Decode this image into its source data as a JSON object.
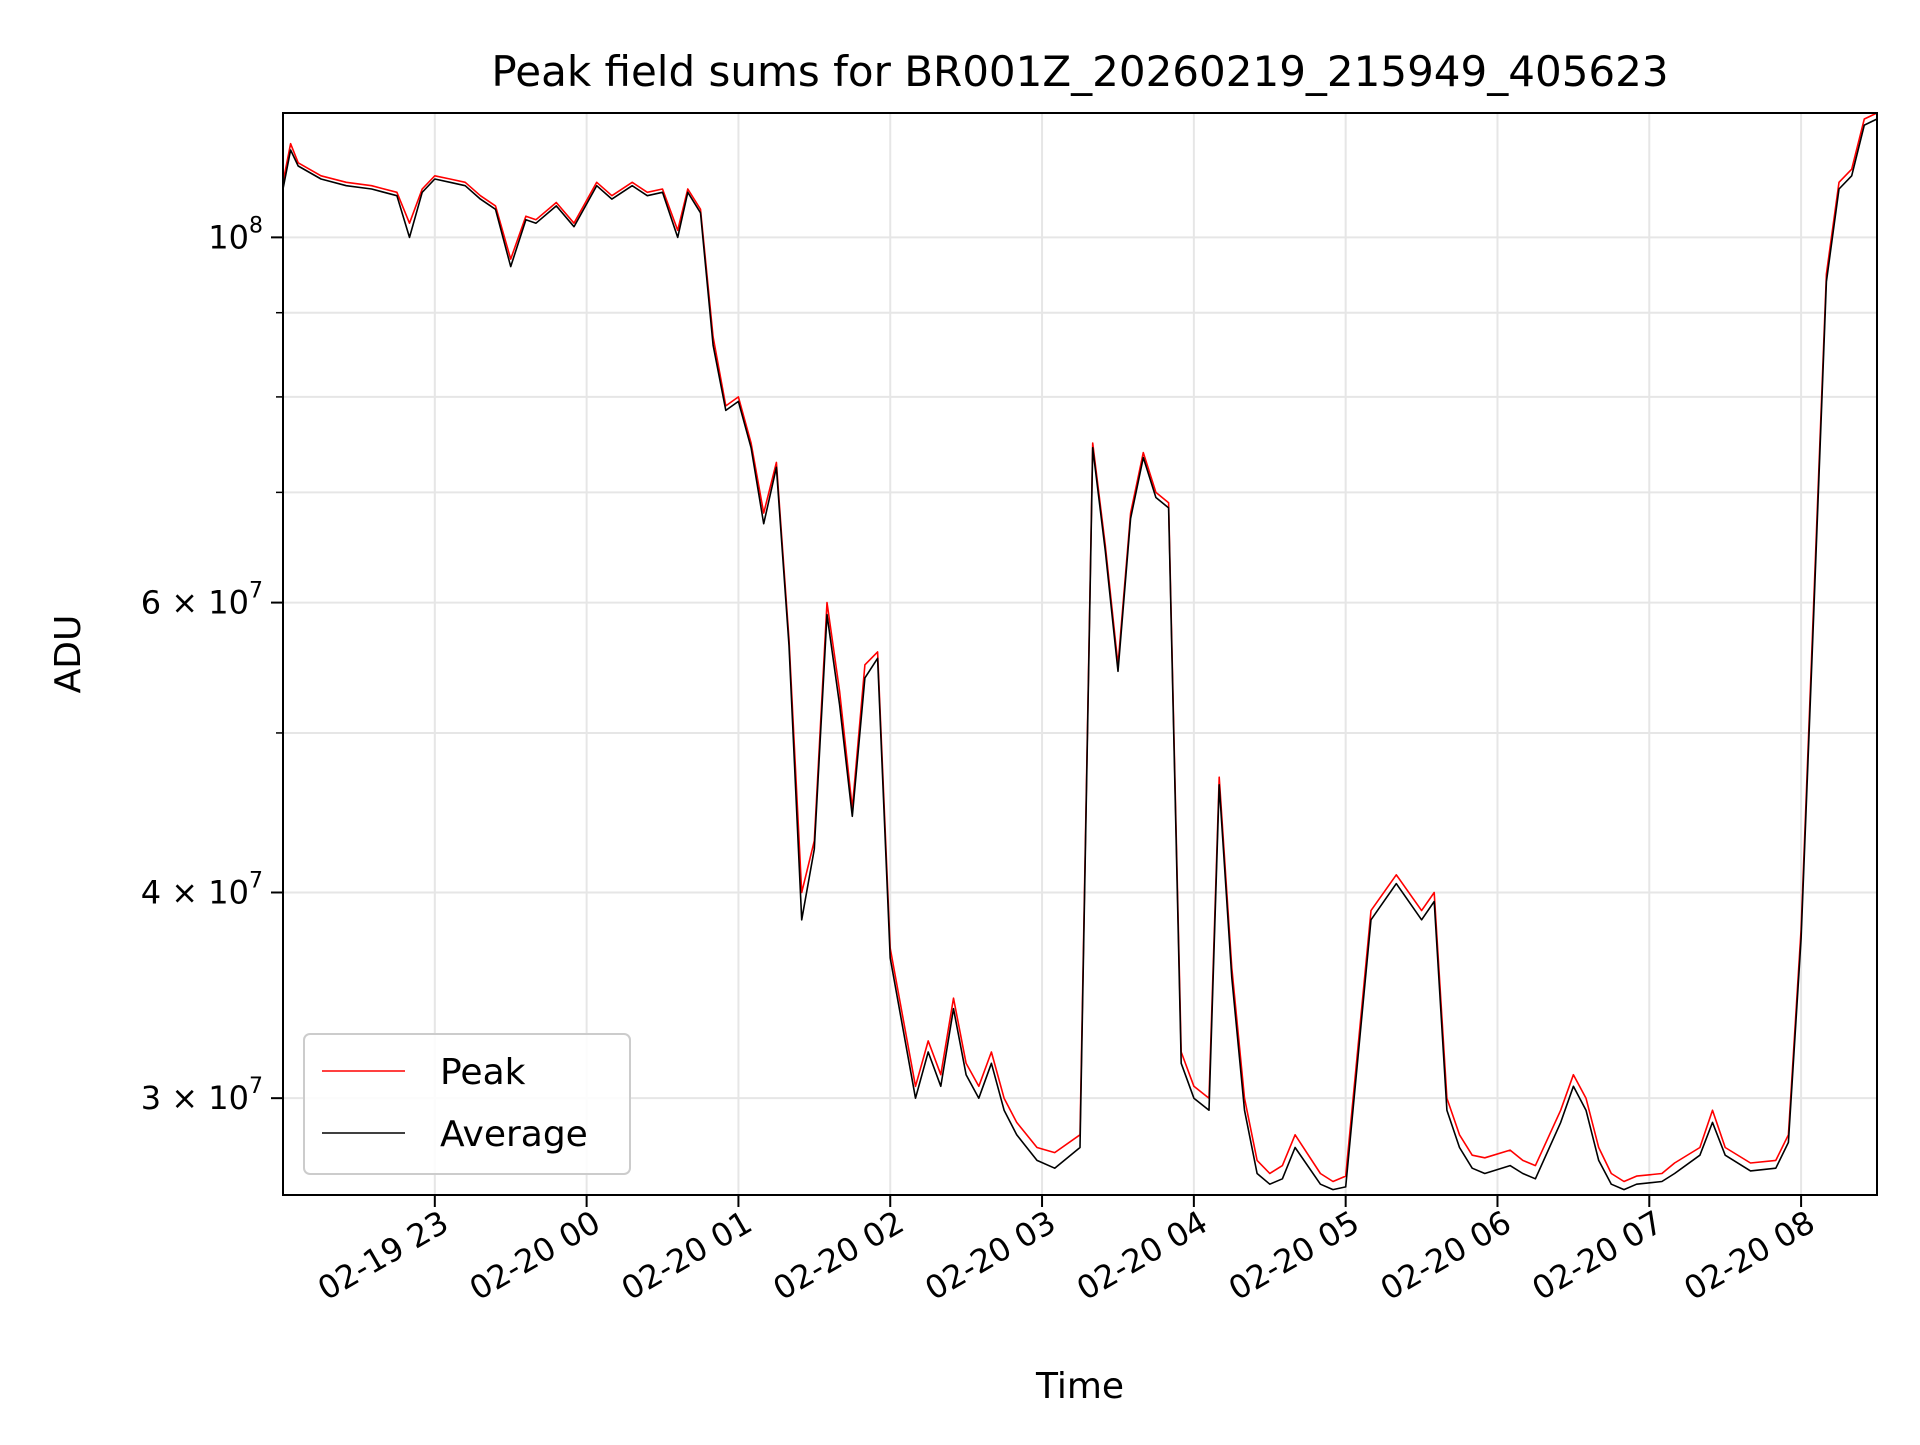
{
  "chart_data": {
    "type": "line",
    "title": "Peak field sums for BR001Z_20260219_215949_405623",
    "xlabel": "Time",
    "ylabel": "ADU",
    "yscale": "log",
    "xlim": [
      "2026-02-19 22:00",
      "2026-02-20 08:30"
    ],
    "ylim": [
      26200000,
      119000000
    ],
    "grid": true,
    "legend_position": "lower-left",
    "x_tick_labels": [
      "02-19 23",
      "02-20 00",
      "02-20 01",
      "02-20 02",
      "02-20 03",
      "02-20 04",
      "02-20 05",
      "02-20 06",
      "02-20 07",
      "02-20 08"
    ],
    "x_tick_values": [
      "2026-02-19 23:00",
      "2026-02-20 00:00",
      "2026-02-20 01:00",
      "2026-02-20 02:00",
      "2026-02-20 03:00",
      "2026-02-20 04:00",
      "2026-02-20 05:00",
      "2026-02-20 06:00",
      "2026-02-20 07:00",
      "2026-02-20 08:00"
    ],
    "y_tick_labels": [
      {
        "value": 100000000,
        "base": "10",
        "exp": "8"
      },
      {
        "value": 60000000,
        "base": "6 × 10",
        "exp": "7"
      },
      {
        "value": 40000000,
        "base": "4 × 10",
        "exp": "7"
      },
      {
        "value": 30000000,
        "base": "3 × 10",
        "exp": "7"
      }
    ],
    "y_minor_ticks": [
      50000000,
      70000000,
      80000000,
      90000000
    ],
    "x": [
      "2026-02-19 22:00",
      "2026-02-19 22:03",
      "2026-02-19 22:06",
      "2026-02-19 22:15",
      "2026-02-19 22:25",
      "2026-02-19 22:35",
      "2026-02-19 22:45",
      "2026-02-19 22:50",
      "2026-02-19 22:55",
      "2026-02-19 23:00",
      "2026-02-19 23:06",
      "2026-02-19 23:12",
      "2026-02-19 23:18",
      "2026-02-19 23:24",
      "2026-02-19 23:30",
      "2026-02-19 23:36",
      "2026-02-19 23:40",
      "2026-02-19 23:48",
      "2026-02-19 23:55",
      "2026-02-20 00:04",
      "2026-02-20 00:10",
      "2026-02-20 00:18",
      "2026-02-20 00:24",
      "2026-02-20 00:30",
      "2026-02-20 00:36",
      "2026-02-20 00:40",
      "2026-02-20 00:45",
      "2026-02-20 00:50",
      "2026-02-20 00:55",
      "2026-02-20 01:00",
      "2026-02-20 01:05",
      "2026-02-20 01:10",
      "2026-02-20 01:15",
      "2026-02-20 01:20",
      "2026-02-20 01:25",
      "2026-02-20 01:30",
      "2026-02-20 01:35",
      "2026-02-20 01:40",
      "2026-02-20 01:45",
      "2026-02-20 01:50",
      "2026-02-20 01:55",
      "2026-02-20 02:00",
      "2026-02-20 02:10",
      "2026-02-20 02:15",
      "2026-02-20 02:20",
      "2026-02-20 02:25",
      "2026-02-20 02:30",
      "2026-02-20 02:35",
      "2026-02-20 02:40",
      "2026-02-20 02:45",
      "2026-02-20 02:50",
      "2026-02-20 02:58",
      "2026-02-20 03:05",
      "2026-02-20 03:15",
      "2026-02-20 03:20",
      "2026-02-20 03:25",
      "2026-02-20 03:30",
      "2026-02-20 03:35",
      "2026-02-20 03:40",
      "2026-02-20 03:45",
      "2026-02-20 03:50",
      "2026-02-20 03:55",
      "2026-02-20 04:00",
      "2026-02-20 04:06",
      "2026-02-20 04:10",
      "2026-02-20 04:15",
      "2026-02-20 04:20",
      "2026-02-20 04:25",
      "2026-02-20 04:30",
      "2026-02-20 04:35",
      "2026-02-20 04:40",
      "2026-02-20 04:50",
      "2026-02-20 04:55",
      "2026-02-20 05:00",
      "2026-02-20 05:10",
      "2026-02-20 05:20",
      "2026-02-20 05:30",
      "2026-02-20 05:35",
      "2026-02-20 05:40",
      "2026-02-20 05:45",
      "2026-02-20 05:50",
      "2026-02-20 05:55",
      "2026-02-20 06:05",
      "2026-02-20 06:10",
      "2026-02-20 06:15",
      "2026-02-20 06:25",
      "2026-02-20 06:30",
      "2026-02-20 06:35",
      "2026-02-20 06:40",
      "2026-02-20 06:45",
      "2026-02-20 06:50",
      "2026-02-20 06:55",
      "2026-02-20 07:05",
      "2026-02-20 07:10",
      "2026-02-20 07:20",
      "2026-02-20 07:25",
      "2026-02-20 07:30",
      "2026-02-20 07:40",
      "2026-02-20 07:50",
      "2026-02-20 07:55",
      "2026-02-20 08:00",
      "2026-02-20 08:05",
      "2026-02-20 08:10",
      "2026-02-20 08:15",
      "2026-02-20 08:20",
      "2026-02-20 08:25",
      "2026-02-20 08:30"
    ],
    "series": [
      {
        "name": "Peak",
        "color": "#ff0000",
        "values": [
          108000000,
          114000000,
          111000000,
          109000000,
          108000000,
          107500000,
          106500000,
          102000000,
          107000000,
          109000000,
          108500000,
          108000000,
          106000000,
          104500000,
          97000000,
          103000000,
          102500000,
          105000000,
          102000000,
          108000000,
          106000000,
          108000000,
          106500000,
          107000000,
          101000000,
          107000000,
          104000000,
          87000000,
          79000000,
          80000000,
          75000000,
          68000000,
          73000000,
          57000000,
          40000000,
          43000000,
          60000000,
          53000000,
          45000000,
          55000000,
          56000000,
          37000000,
          30500000,
          32500000,
          31000000,
          34500000,
          31500000,
          30500000,
          32000000,
          30000000,
          29000000,
          28000000,
          27800000,
          28500000,
          75000000,
          65000000,
          55000000,
          68000000,
          74000000,
          70000000,
          69000000,
          32000000,
          30500000,
          30000000,
          47000000,
          36000000,
          30000000,
          27500000,
          27000000,
          27300000,
          28500000,
          27000000,
          26700000,
          26900000,
          39000000,
          41000000,
          39000000,
          40000000,
          30000000,
          28500000,
          27700000,
          27600000,
          27900000,
          27500000,
          27300000,
          29500000,
          31000000,
          30000000,
          28000000,
          27000000,
          26700000,
          26900000,
          27000000,
          27400000,
          28000000,
          29500000,
          28000000,
          27400000,
          27500000,
          28500000,
          38000000,
          60000000,
          95000000,
          108000000,
          110000000,
          118000000,
          119000000
        ]
      },
      {
        "name": "Average",
        "color": "#000000",
        "values": [
          107000000,
          113000000,
          110500000,
          108500000,
          107500000,
          107000000,
          106000000,
          100000000,
          106500000,
          108500000,
          108000000,
          107500000,
          105500000,
          104000000,
          96000000,
          102500000,
          102000000,
          104500000,
          101500000,
          107500000,
          105500000,
          107500000,
          106000000,
          106500000,
          100000000,
          106500000,
          103500000,
          86000000,
          78500000,
          79500000,
          74500000,
          67000000,
          72500000,
          56500000,
          38500000,
          42500000,
          59000000,
          52000000,
          44500000,
          54000000,
          55500000,
          36500000,
          30000000,
          32000000,
          30500000,
          34000000,
          31000000,
          30000000,
          31500000,
          29500000,
          28500000,
          27500000,
          27200000,
          28000000,
          74500000,
          64500000,
          54500000,
          67500000,
          73500000,
          69500000,
          68500000,
          31500000,
          30000000,
          29500000,
          46500000,
          35500000,
          29500000,
          27000000,
          26600000,
          26800000,
          28000000,
          26600000,
          26400000,
          26500000,
          38500000,
          40500000,
          38500000,
          39500000,
          29500000,
          28000000,
          27200000,
          27000000,
          27300000,
          27000000,
          26800000,
          29000000,
          30500000,
          29500000,
          27500000,
          26600000,
          26400000,
          26600000,
          26700000,
          27000000,
          27700000,
          29000000,
          27700000,
          27100000,
          27200000,
          28200000,
          37500000,
          59000000,
          94000000,
          107000000,
          109000000,
          117000000,
          118000000
        ]
      }
    ]
  }
}
